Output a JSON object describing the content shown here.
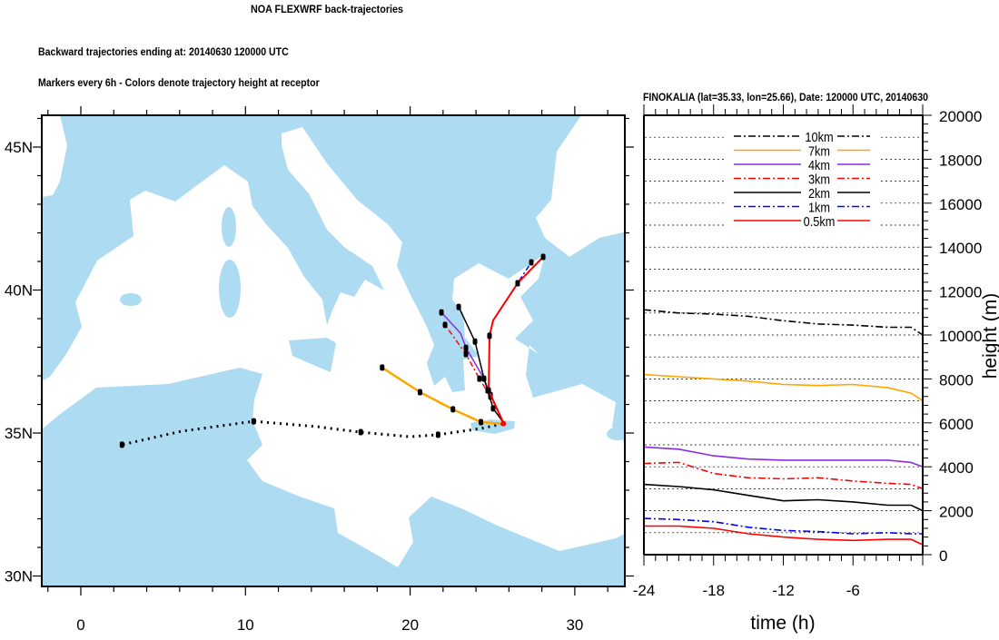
{
  "titles": {
    "main": "NOA FLEXWRF back-trajectories",
    "line1": "Backward trajectories ending at: 20140630  120000 UTC",
    "line2": "Markers every 6h - Colors denote trajectory height at receptor",
    "panel": "FINOKALIA (lat=35.33,  lon=25.66), Date: 120000 UTC, 20140630"
  },
  "colors": {
    "land": "#addcf2",
    "sea": "#ffffff"
  },
  "chart_data": [
    {
      "type": "map-trajectories",
      "title": "Backward trajectories ending at: 20140630  120000 UTC",
      "receptor": {
        "name": "FINOKALIA",
        "lat": 35.33,
        "lon": 25.66
      },
      "lon_range": [
        -2.4,
        33
      ],
      "lat_range": [
        29.6,
        46.1
      ],
      "lon_ticks": [
        {
          "v": 0,
          "label": "0"
        },
        {
          "v": 10,
          "label": "10"
        },
        {
          "v": 20,
          "label": "20"
        },
        {
          "v": 30,
          "label": "30"
        }
      ],
      "lat_ticks": [
        {
          "v": 30,
          "label": "30N"
        },
        {
          "v": 35,
          "label": "35N"
        },
        {
          "v": 40,
          "label": "40N"
        },
        {
          "v": 45,
          "label": "45N"
        }
      ],
      "series": [
        {
          "name": "10km",
          "color": "#000000",
          "dash": "2,5",
          "width": 3,
          "points": [
            [
              25.6,
              35.32
            ],
            [
              24.3,
              35.16
            ],
            [
              21.7,
              34.94
            ],
            [
              20.0,
              34.87
            ],
            [
              17.0,
              35.03
            ],
            [
              14.4,
              35.22
            ],
            [
              10.5,
              35.41
            ],
            [
              6.1,
              35.06
            ],
            [
              2.5,
              34.59
            ]
          ],
          "markers": [
            [
              21.7,
              34.94
            ],
            [
              17.0,
              35.03
            ],
            [
              10.5,
              35.41
            ],
            [
              2.5,
              34.59
            ]
          ]
        },
        {
          "name": "7km",
          "color": "#ffa500",
          "dash": "",
          "width": 2.5,
          "points": [
            [
              25.6,
              35.32
            ],
            [
              24.3,
              35.38
            ],
            [
              22.6,
              35.83
            ],
            [
              20.6,
              36.43
            ],
            [
              18.3,
              37.29
            ]
          ],
          "markers": [
            [
              24.3,
              35.38
            ],
            [
              22.6,
              35.83
            ],
            [
              20.6,
              36.43
            ],
            [
              18.3,
              37.29
            ]
          ]
        },
        {
          "name": "4km",
          "color": "#8a2be2",
          "dash": "",
          "width": 1.5,
          "points": [
            [
              25.65,
              35.38
            ],
            [
              24.88,
              36.33
            ],
            [
              24.49,
              36.9
            ],
            [
              23.39,
              37.98
            ],
            [
              23.06,
              38.49
            ],
            [
              21.9,
              39.22
            ]
          ],
          "markers": [
            [
              24.88,
              36.33
            ],
            [
              24.49,
              36.9
            ],
            [
              23.39,
              37.98
            ],
            [
              21.9,
              39.22
            ]
          ]
        },
        {
          "name": "3km",
          "color": "#ff0000",
          "dash": "6,3,2,3",
          "width": 1.5,
          "points": [
            [
              25.65,
              35.38
            ],
            [
              24.88,
              36.27
            ],
            [
              24.21,
              36.9
            ],
            [
              23.39,
              37.76
            ],
            [
              22.12,
              38.78
            ]
          ],
          "markers": [
            [
              24.88,
              36.27
            ],
            [
              24.21,
              36.9
            ],
            [
              23.39,
              37.76
            ],
            [
              22.12,
              38.78
            ]
          ]
        },
        {
          "name": "2km",
          "color": "#000000",
          "dash": "",
          "width": 1.5,
          "points": [
            [
              25.65,
              35.38
            ],
            [
              25.04,
              35.86
            ],
            [
              24.71,
              36.49
            ],
            [
              24.49,
              36.9
            ],
            [
              23.94,
              38.2
            ],
            [
              22.95,
              39.41
            ]
          ],
          "markers": [
            [
              25.04,
              35.86
            ],
            [
              24.71,
              36.49
            ],
            [
              23.94,
              38.2
            ],
            [
              22.95,
              39.41
            ]
          ]
        },
        {
          "name": "1km",
          "color": "#0000ff",
          "dash": "6,3,2,3",
          "width": 1.5,
          "points": [
            [
              25.65,
              35.38
            ],
            [
              24.77,
              36.49
            ],
            [
              24.82,
              38.4
            ],
            [
              25.04,
              38.94
            ],
            [
              26.53,
              40.24
            ],
            [
              27.36,
              40.97
            ]
          ],
          "markers": [
            [
              24.77,
              36.49
            ],
            [
              24.82,
              38.4
            ],
            [
              26.53,
              40.24
            ],
            [
              27.36,
              40.97
            ]
          ]
        },
        {
          "name": "0.5km",
          "color": "#ff0000",
          "dash": "",
          "width": 2,
          "points": [
            [
              25.65,
              35.38
            ],
            [
              24.77,
              36.49
            ],
            [
              24.82,
              38.4
            ],
            [
              25.04,
              38.94
            ],
            [
              26.53,
              40.24
            ],
            [
              28.08,
              41.16
            ]
          ],
          "markers": [
            [
              24.77,
              36.49
            ],
            [
              24.82,
              38.4
            ],
            [
              26.53,
              40.24
            ],
            [
              28.08,
              41.16
            ]
          ]
        }
      ]
    },
    {
      "type": "line",
      "title": "FINOKALIA (lat=35.33,  lon=25.66), Date: 120000 UTC, 20140630",
      "xlabel": "time (h)",
      "ylabel": "height (m)",
      "xlim": [
        -24,
        0
      ],
      "ylim": [
        0,
        20000
      ],
      "x_ticks": [
        {
          "v": -24,
          "label": "-24"
        },
        {
          "v": -18,
          "label": "-18"
        },
        {
          "v": -12,
          "label": "-12"
        },
        {
          "v": -6,
          "label": "-6"
        }
      ],
      "y_ticks": [
        {
          "v": 0,
          "label": "0"
        },
        {
          "v": 2000,
          "label": "2000"
        },
        {
          "v": 4000,
          "label": "4000"
        },
        {
          "v": 6000,
          "label": "6000"
        },
        {
          "v": 8000,
          "label": "8000"
        },
        {
          "v": 10000,
          "label": "10000"
        },
        {
          "v": 12000,
          "label": "12000"
        },
        {
          "v": 14000,
          "label": "14000"
        },
        {
          "v": 16000,
          "label": "16000"
        },
        {
          "v": 18000,
          "label": "18000"
        },
        {
          "v": 20000,
          "label": "20000"
        }
      ],
      "grid": "dotted horizontal every 1000 m",
      "legend_position": "top-center",
      "x": [
        -24,
        -21,
        -18,
        -15,
        -12,
        -9,
        -6,
        -3,
        -1,
        0
      ],
      "series": [
        {
          "name": "10km",
          "color": "#000000",
          "dash": "8,3,2,3",
          "values": [
            11150,
            11000,
            10950,
            10850,
            10650,
            10500,
            10450,
            10350,
            10350,
            10000
          ]
        },
        {
          "name": "7km",
          "color": "#ffa500",
          "dash": "",
          "values": [
            8200,
            8100,
            8000,
            7900,
            7750,
            7700,
            7750,
            7600,
            7350,
            7000
          ]
        },
        {
          "name": "4km",
          "color": "#8a2be2",
          "dash": "",
          "values": [
            4900,
            4800,
            4500,
            4350,
            4300,
            4300,
            4300,
            4300,
            4200,
            4000
          ]
        },
        {
          "name": "3km",
          "color": "#ff0000",
          "dash": "8,3,2,3",
          "values": [
            4150,
            4200,
            3700,
            3500,
            3450,
            3500,
            3350,
            3250,
            3200,
            3000
          ]
        },
        {
          "name": "2km",
          "color": "#000000",
          "dash": "",
          "values": [
            3200,
            3100,
            2950,
            2700,
            2450,
            2500,
            2400,
            2250,
            2250,
            2000
          ]
        },
        {
          "name": "1km",
          "color": "#0000ff",
          "dash": "8,3,2,3",
          "values": [
            1650,
            1600,
            1500,
            1250,
            1100,
            1050,
            950,
            1000,
            950,
            950
          ]
        },
        {
          "name": "0.5km",
          "color": "#ff0000",
          "dash": "",
          "values": [
            1300,
            1300,
            1200,
            950,
            800,
            700,
            650,
            700,
            700,
            450
          ]
        }
      ]
    }
  ]
}
